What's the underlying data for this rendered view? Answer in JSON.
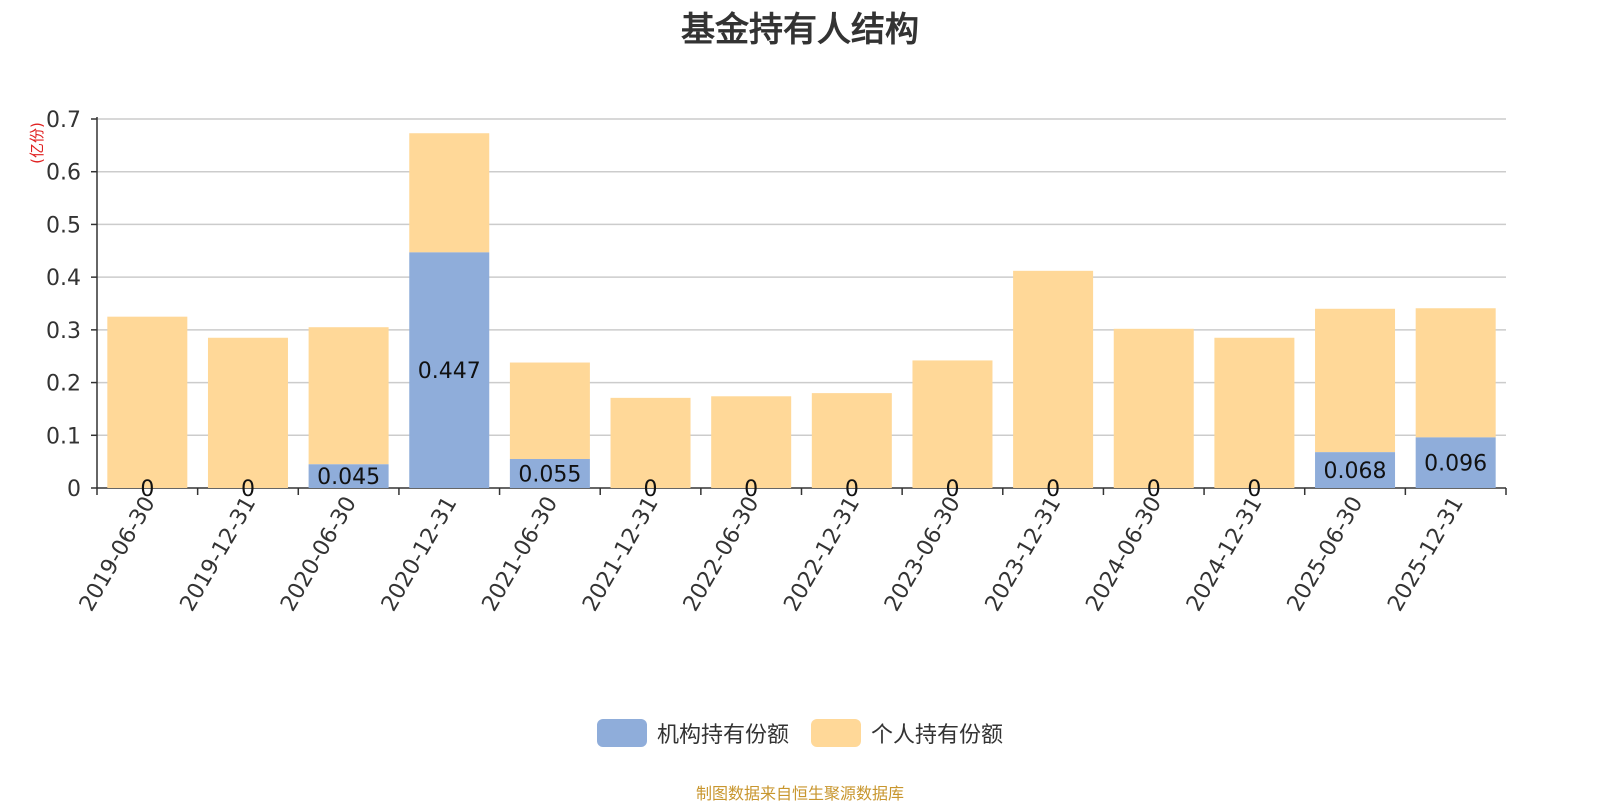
{
  "chart_data": {
    "type": "bar",
    "stacked": true,
    "title": "基金持有人结构",
    "ylabel": "(亿份)",
    "ylim": [
      0,
      0.7
    ],
    "yticks": [
      "0",
      "0.1",
      "0.2",
      "0.3",
      "0.4",
      "0.5",
      "0.6",
      "0.7"
    ],
    "grid": true,
    "legend_position": "bottom",
    "categories": [
      "2019-06-30",
      "2019-12-31",
      "2020-06-30",
      "2020-12-31",
      "2021-06-30",
      "2021-12-31",
      "2022-06-30",
      "2022-12-31",
      "2023-06-30",
      "2023-12-31",
      "2024-06-30",
      "2024-12-31",
      "2025-06-30",
      "2025-12-31"
    ],
    "series": [
      {
        "name": "机构持有份额",
        "color": "#8fadda",
        "values": [
          0,
          0,
          0.045,
          0.447,
          0.055,
          0,
          0,
          0,
          0,
          0,
          0,
          0,
          0.068,
          0.096
        ],
        "labels": [
          "0",
          "0",
          "0.045",
          "0.447",
          "0.055",
          "0",
          "0",
          "0",
          "0",
          "0",
          "0",
          "0",
          "0.068",
          "0.096"
        ]
      },
      {
        "name": "个人持有份额",
        "color": "#ffd898",
        "values": [
          0.325,
          0.285,
          0.26,
          0.226,
          0.183,
          0.171,
          0.174,
          0.18,
          0.242,
          0.412,
          0.302,
          0.285,
          0.272,
          0.245
        ]
      }
    ]
  },
  "source_note": "制图数据来自恒生聚源数据库"
}
